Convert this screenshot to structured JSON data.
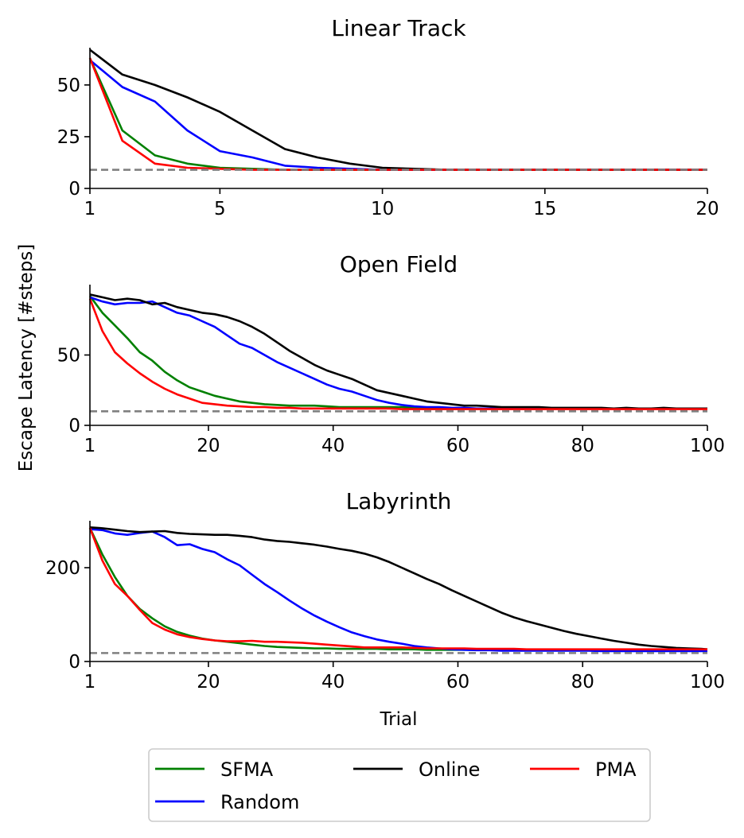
{
  "ylabel": "Escape Latency [#steps]",
  "colors": {
    "SFMA": "#008000",
    "Random": "#0000ff",
    "Online": "#000000",
    "PMA": "#ff0000",
    "reference": "#808080"
  },
  "legend": {
    "location": "lower center",
    "ncol": 3,
    "entries": [
      "SFMA",
      "Online",
      "PMA",
      "Random"
    ]
  },
  "chart_data": [
    {
      "type": "line",
      "title": "Linear Track",
      "xlabel": "",
      "xlim": [
        1,
        20
      ],
      "ylim": [
        0,
        68
      ],
      "xticks": [
        1,
        5,
        10,
        15,
        20
      ],
      "yticks": [
        0,
        25,
        50
      ],
      "grid": false,
      "reference_line": 9,
      "x": [
        1,
        2,
        3,
        4,
        5,
        6,
        7,
        8,
        9,
        10,
        11,
        12,
        13,
        14,
        15,
        16,
        17,
        18,
        19,
        20
      ],
      "series": [
        {
          "name": "SFMA",
          "values": [
            63,
            28,
            16,
            12,
            10,
            9.5,
            9,
            9,
            9,
            9,
            9,
            9,
            9,
            9,
            9,
            9,
            9,
            9,
            9,
            9
          ]
        },
        {
          "name": "Random",
          "values": [
            62,
            49,
            42,
            28,
            18,
            15,
            11,
            10,
            9.5,
            9,
            9,
            9,
            9,
            9,
            9,
            9,
            9,
            9,
            9,
            9
          ]
        },
        {
          "name": "Online",
          "values": [
            67,
            55,
            50,
            44,
            37,
            28,
            19,
            15,
            12,
            10,
            9.5,
            9,
            9,
            9,
            9,
            9,
            9,
            9,
            9,
            9
          ]
        },
        {
          "name": "PMA",
          "values": [
            63,
            23,
            12,
            10,
            9.5,
            9,
            9,
            9,
            9,
            9,
            9,
            9,
            9,
            9,
            9,
            9,
            9,
            9,
            9,
            9
          ]
        }
      ]
    },
    {
      "type": "line",
      "title": "Open Field",
      "xlabel": "",
      "xlim": [
        1,
        100
      ],
      "ylim": [
        0,
        100
      ],
      "xticks": [
        1,
        20,
        40,
        60,
        80,
        100
      ],
      "yticks": [
        0,
        50
      ],
      "grid": false,
      "reference_line": 10,
      "x": [
        1,
        3,
        5,
        7,
        9,
        11,
        13,
        15,
        17,
        19,
        21,
        23,
        25,
        27,
        29,
        31,
        33,
        35,
        37,
        39,
        41,
        43,
        45,
        47,
        49,
        51,
        53,
        55,
        57,
        59,
        61,
        63,
        65,
        67,
        69,
        71,
        73,
        75,
        77,
        79,
        81,
        83,
        85,
        87,
        89,
        91,
        93,
        95,
        97,
        99,
        100
      ],
      "series": [
        {
          "name": "SFMA",
          "values": [
            92,
            80,
            71,
            62,
            52,
            46,
            38,
            32,
            27,
            24,
            21,
            19,
            17,
            16,
            15,
            14.5,
            14,
            14,
            14,
            13.5,
            13,
            13,
            13,
            13,
            13,
            13,
            12.5,
            12.5,
            12,
            12,
            12,
            12,
            12,
            12,
            12,
            12,
            12,
            12,
            12,
            12,
            12,
            12,
            12,
            12,
            12,
            12,
            12,
            12,
            12,
            12,
            12
          ]
        },
        {
          "name": "Random",
          "values": [
            91,
            88,
            86,
            87,
            87,
            88,
            84,
            80,
            78,
            74,
            70,
            64,
            58,
            55,
            50,
            45,
            41,
            37,
            33,
            29,
            26,
            24,
            21,
            18,
            16,
            14.5,
            13.5,
            13,
            13,
            12.5,
            12.5,
            12,
            12,
            12,
            12,
            12,
            12,
            12,
            12,
            12,
            12,
            12,
            12,
            12,
            12,
            12,
            12,
            12,
            12,
            12,
            12
          ]
        },
        {
          "name": "Online",
          "values": [
            93,
            91,
            89,
            90,
            89,
            86,
            87,
            84,
            82,
            80,
            79,
            77,
            74,
            70,
            65,
            59,
            53,
            48,
            43,
            39,
            36,
            33,
            29,
            25,
            23,
            21,
            19,
            17,
            16,
            15,
            14,
            14,
            13.5,
            13,
            13,
            13,
            13,
            12.5,
            12.5,
            12.5,
            12.5,
            12.5,
            12,
            12.5,
            12,
            12,
            12.5,
            12,
            12,
            12,
            12
          ]
        },
        {
          "name": "PMA",
          "values": [
            90,
            67,
            52,
            44,
            37,
            31,
            26,
            22,
            19,
            16,
            15,
            14,
            13.5,
            13,
            13,
            12.5,
            12.5,
            12,
            12,
            12,
            12,
            12,
            12,
            12,
            12,
            11.5,
            11.5,
            11.5,
            11.5,
            11.5,
            11.5,
            11.5,
            11.5,
            11.5,
            11.5,
            11.5,
            11.5,
            11.5,
            11.5,
            11.5,
            11.5,
            11.5,
            11.5,
            11.5,
            11.5,
            11.5,
            11.5,
            11.5,
            11.5,
            11.5,
            11.5
          ]
        }
      ]
    },
    {
      "type": "line",
      "title": "Labyrinth",
      "xlabel": "Trial",
      "xlim": [
        1,
        100
      ],
      "ylim": [
        0,
        300
      ],
      "xticks": [
        1,
        20,
        40,
        60,
        80,
        100
      ],
      "yticks": [
        0,
        200
      ],
      "grid": false,
      "reference_line": 18,
      "x": [
        1,
        3,
        5,
        7,
        9,
        11,
        13,
        15,
        17,
        19,
        21,
        23,
        25,
        27,
        29,
        31,
        33,
        35,
        37,
        39,
        41,
        43,
        45,
        47,
        49,
        51,
        53,
        55,
        57,
        59,
        61,
        63,
        65,
        67,
        69,
        71,
        73,
        75,
        77,
        79,
        81,
        83,
        85,
        87,
        89,
        91,
        93,
        95,
        97,
        99,
        100
      ],
      "series": [
        {
          "name": "SFMA",
          "values": [
            285,
            228,
            180,
            140,
            112,
            92,
            75,
            63,
            55,
            49,
            45,
            42,
            39,
            36,
            33,
            31,
            30,
            29,
            28,
            28,
            27,
            27,
            27,
            27,
            26,
            26,
            26,
            25,
            25,
            25,
            25,
            25,
            25,
            25,
            25,
            25,
            25,
            25,
            25,
            25,
            25,
            25,
            25,
            25,
            25,
            25,
            25,
            25,
            25,
            25,
            25
          ]
        },
        {
          "name": "Random",
          "values": [
            282,
            280,
            273,
            270,
            274,
            277,
            265,
            248,
            250,
            240,
            233,
            218,
            205,
            185,
            165,
            148,
            130,
            113,
            98,
            85,
            73,
            62,
            54,
            47,
            42,
            38,
            33,
            30,
            28,
            26,
            25,
            24,
            24,
            23,
            23,
            23,
            23,
            23,
            23,
            23,
            23,
            22,
            22,
            22,
            22,
            22,
            22,
            22,
            22,
            22,
            22
          ]
        },
        {
          "name": "Online",
          "values": [
            286,
            284,
            281,
            278,
            276,
            277,
            278,
            274,
            272,
            271,
            270,
            270,
            268,
            265,
            260,
            257,
            255,
            252,
            249,
            245,
            240,
            236,
            230,
            222,
            212,
            200,
            188,
            176,
            165,
            152,
            140,
            128,
            116,
            104,
            94,
            86,
            79,
            72,
            65,
            59,
            54,
            49,
            44,
            40,
            36,
            33,
            31,
            29,
            28,
            27,
            26
          ]
        },
        {
          "name": "PMA",
          "values": [
            285,
            215,
            165,
            140,
            110,
            82,
            68,
            58,
            52,
            48,
            45,
            43,
            43,
            44,
            42,
            42,
            41,
            40,
            38,
            36,
            34,
            32,
            30,
            30,
            30,
            30,
            29,
            28,
            28,
            28,
            28,
            27,
            27,
            27,
            27,
            26,
            26,
            26,
            26,
            26,
            26,
            26,
            26,
            26,
            26,
            26,
            26,
            26,
            26,
            26,
            26
          ]
        }
      ]
    }
  ]
}
